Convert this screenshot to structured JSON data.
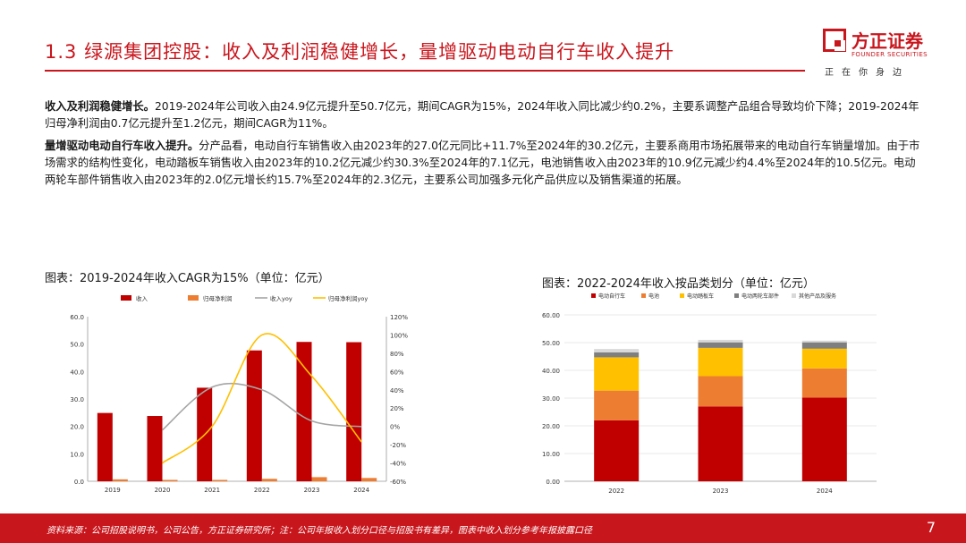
{
  "header": {
    "title": "1.3 绿源集团控股：收入及利润稳健增长，量增驱动电动自行车收入提升",
    "logo_name": "方正证券",
    "logo_en": "FOUNDER SECURITIES",
    "logo_tagline": "正在你身边",
    "accent_color": "#c8161d"
  },
  "paragraphs": [
    {
      "lead": "收入及利润稳健增长。",
      "body": "2019-2024年公司收入由24.9亿元提升至50.7亿元，期间CAGR为15%，2024年收入同比减少约0.2%，主要系调整产品组合导致均价下降；2019-2024年归母净利润由0.7亿元提升至1.2亿元，期间CAGR为11%。"
    },
    {
      "lead": "量增驱动电动自行车收入提升。",
      "body": "分产品看，电动自行车销售收入由2023年的27.0亿元同比+11.7%至2024年的30.2亿元，主要系商用市场拓展带来的电动自行车销量增加。由于市场需求的结构性变化，电动踏板车销售收入由2023年的10.2亿元减少约30.3%至2024年的7.1亿元，电池销售收入由2023年的10.9亿元减少约4.4%至2024年的10.5亿元。电动两轮车部件销售收入由2023年的2.0亿元增长约15.7%至2024年的2.3亿元，主要系公司加强多元化产品供应以及销售渠道的拓展。"
    }
  ],
  "chart_titles": {
    "left": "图表：2019-2024年收入CAGR为15%（单位：亿元）",
    "right": "图表：2022-2024年收入按品类划分（单位：亿元）"
  },
  "chart_data": [
    {
      "type": "bar",
      "title": "图表：2019-2024年收入CAGR为15%（单位：亿元）",
      "categories": [
        "2019",
        "2020",
        "2021",
        "2022",
        "2023",
        "2024"
      ],
      "series": [
        {
          "name": "收入",
          "kind": "bar",
          "axis": "left",
          "color": "#c00000",
          "values": [
            24.9,
            23.8,
            34.1,
            47.7,
            50.8,
            50.7
          ]
        },
        {
          "name": "归母净利润",
          "kind": "bar",
          "axis": "left",
          "color": "#ed7d31",
          "values": [
            0.7,
            0.5,
            0.5,
            0.9,
            1.5,
            1.2
          ]
        },
        {
          "name": "收入yoy",
          "kind": "line",
          "axis": "right",
          "color": "#a5a5a5",
          "values": [
            null,
            -4,
            43,
            40,
            6,
            -0.2
          ]
        },
        {
          "name": "归母净利润yoy",
          "kind": "line",
          "axis": "right",
          "color": "#ffc000",
          "values": [
            null,
            -40,
            0,
            100,
            55,
            -17
          ]
        }
      ],
      "ylim": [
        0,
        60
      ],
      "yticks": [
        "0.0",
        "10.0",
        "20.0",
        "30.0",
        "40.0",
        "50.0",
        "60.0"
      ],
      "y2lim": [
        -60,
        120
      ],
      "y2ticks": [
        "-60%",
        "-40%",
        "-20%",
        "0%",
        "20%",
        "40%",
        "60%",
        "80%",
        "100%",
        "120%"
      ],
      "legend": "top"
    },
    {
      "type": "bar",
      "stacked": true,
      "title": "图表：2022-2024年收入按品类划分（单位：亿元）",
      "categories": [
        "2022",
        "2023",
        "2024"
      ],
      "series": [
        {
          "name": "电动自行车",
          "color": "#c00000",
          "values": [
            22.0,
            27.0,
            30.2
          ]
        },
        {
          "name": "电池",
          "color": "#ed7d31",
          "values": [
            10.7,
            10.9,
            10.5
          ]
        },
        {
          "name": "电动踏板车",
          "color": "#ffc000",
          "values": [
            12.0,
            10.2,
            7.1
          ]
        },
        {
          "name": "电动两轮车部件",
          "color": "#7f7f7f",
          "values": [
            1.8,
            2.0,
            2.3
          ]
        },
        {
          "name": "其他产品及服务",
          "color": "#d9d9d9",
          "values": [
            1.2,
            0.9,
            0.6
          ]
        }
      ],
      "ylim": [
        0,
        60
      ],
      "yticks": [
        "0.00",
        "10.00",
        "20.00",
        "30.00",
        "40.00",
        "50.00",
        "60.00"
      ],
      "legend": "top"
    }
  ],
  "footer": {
    "source": "资料来源：公司招股说明书，公司公告，方正证券研究所；注：公司年报收入划分口径与招股书有差异，图表中收入划分参考年报披露口径",
    "page_number": "7"
  }
}
